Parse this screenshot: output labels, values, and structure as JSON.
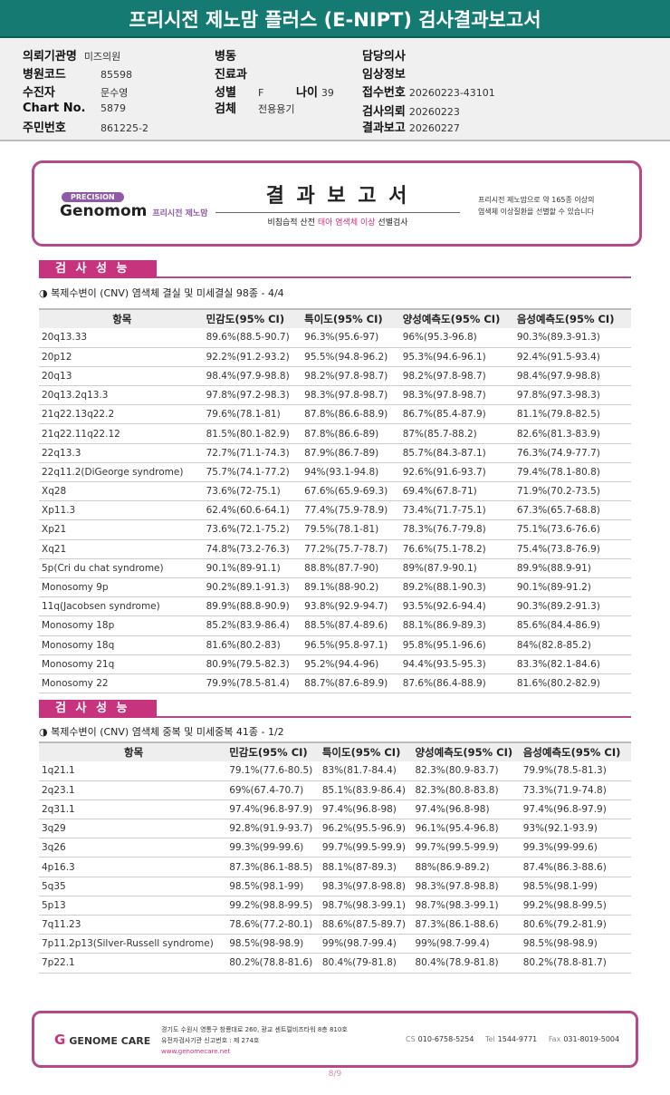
{
  "title": "프리시전 제노맘 플러스 (E-NIPT) 검사결과보고서",
  "info": {
    "institution": {
      "label": "의뢰기관명",
      "value": "미즈의원"
    },
    "hospital_code": {
      "label": "병원코드",
      "value": "85598"
    },
    "patient": {
      "label": "수진자",
      "value": "문수영"
    },
    "chart_no": {
      "label": "Chart No.",
      "value": "5879"
    },
    "resident_no": {
      "label": "주민번호",
      "value": "861225-2"
    },
    "ward": {
      "label": "병동",
      "value": ""
    },
    "department": {
      "label": "진료과",
      "value": ""
    },
    "sex": {
      "label": "성별",
      "value": "F"
    },
    "age": {
      "label": "나이",
      "value": "39"
    },
    "specimen": {
      "label": "검체",
      "value": "전용용기"
    },
    "doctor": {
      "label": "담당의사",
      "value": ""
    },
    "clinical": {
      "label": "임상정보",
      "value": ""
    },
    "receipt_no": {
      "label": "접수번호",
      "value": "20260223-43101"
    },
    "request_date": {
      "label": "검사의뢰",
      "value": "20260223"
    },
    "report_date": {
      "label": "결과보고",
      "value": "20260227"
    }
  },
  "banner": {
    "precision": "PRECISION",
    "brand": "Genomom",
    "brand_sub": "프리시전 제노맘",
    "title": "결 과 보 고 서",
    "subtitle_a": "비침습적 산전 ",
    "subtitle_b": "태아 염색체 이상",
    "subtitle_c": " 선별검사",
    "note_line1": "프리시전 제노맘으로 약 165종 이상의",
    "note_line2": "염색체 이상질환을 선별할 수 있습니다"
  },
  "headers": [
    "항목",
    "민감도(95% CI)",
    "특이도(95% CI)",
    "양성예측도(95% CI)",
    "음성예측도(95% CI)"
  ],
  "sections": [
    {
      "heading": "검 사 성 능",
      "subtitle": "◑ 복제수변이 (CNV) 염색체 결실 및 미세결실 98종 - 4/4",
      "rows": [
        [
          "20q13.33",
          "89.6%(88.5-90.7)",
          "96.3%(95.6-97)",
          "96%(95.3-96.8)",
          "90.3%(89.3-91.3)"
        ],
        [
          "20p12",
          "92.2%(91.2-93.2)",
          "95.5%(94.8-96.2)",
          "95.3%(94.6-96.1)",
          "92.4%(91.5-93.4)"
        ],
        [
          "20q13",
          "98.4%(97.9-98.8)",
          "98.2%(97.8-98.7)",
          "98.2%(97.8-98.7)",
          "98.4%(97.9-98.8)"
        ],
        [
          "20q13.2q13.3",
          "97.8%(97.2-98.3)",
          "98.3%(97.8-98.7)",
          "98.3%(97.8-98.7)",
          "97.8%(97.3-98.3)"
        ],
        [
          "21q22.13q22.2",
          "79.6%(78.1-81)",
          "87.8%(86.6-88.9)",
          "86.7%(85.4-87.9)",
          "81.1%(79.8-82.5)"
        ],
        [
          "21q22.11q22.12",
          "81.5%(80.1-82.9)",
          "87.8%(86.6-89)",
          "87%(85.7-88.2)",
          "82.6%(81.3-83.9)"
        ],
        [
          "22q13.3",
          "72.7%(71.1-74.3)",
          "87.9%(86.7-89)",
          "85.7%(84.3-87.1)",
          "76.3%(74.9-77.7)"
        ],
        [
          "22q11.2(DiGeorge syndrome)",
          "75.7%(74.1-77.2)",
          "94%(93.1-94.8)",
          "92.6%(91.6-93.7)",
          "79.4%(78.1-80.8)"
        ],
        [
          "Xq28",
          "73.6%(72-75.1)",
          "67.6%(65.9-69.3)",
          "69.4%(67.8-71)",
          "71.9%(70.2-73.5)"
        ],
        [
          "Xp11.3",
          "62.4%(60.6-64.1)",
          "77.4%(75.9-78.9)",
          "73.4%(71.7-75.1)",
          "67.3%(65.7-68.8)"
        ],
        [
          "Xp21",
          "73.6%(72.1-75.2)",
          "79.5%(78.1-81)",
          "78.3%(76.7-79.8)",
          "75.1%(73.6-76.6)"
        ],
        [
          "Xq21",
          "74.8%(73.2-76.3)",
          "77.2%(75.7-78.7)",
          "76.6%(75.1-78.2)",
          "75.4%(73.8-76.9)"
        ],
        [
          "5p(Cri du chat syndrome)",
          "90.1%(89-91.1)",
          "88.8%(87.7-90)",
          "89%(87.9-90.1)",
          "89.9%(88.9-91)"
        ],
        [
          "Monosomy 9p",
          "90.2%(89.1-91.3)",
          "89.1%(88-90.2)",
          "89.2%(88.1-90.3)",
          "90.1%(89-91.2)"
        ],
        [
          "11q(Jacobsen syndrome)",
          "89.9%(88.8-90.9)",
          "93.8%(92.9-94.7)",
          "93.5%(92.6-94.4)",
          "90.3%(89.2-91.3)"
        ],
        [
          "Monosomy 18p",
          "85.2%(83.9-86.4)",
          "88.5%(87.4-89.6)",
          "88.1%(86.9-89.3)",
          "85.6%(84.4-86.9)"
        ],
        [
          "Monosomy 18q",
          "81.6%(80.2-83)",
          "96.5%(95.8-97.1)",
          "95.8%(95.1-96.6)",
          "84%(82.8-85.2)"
        ],
        [
          "Monosomy 21q",
          "80.9%(79.5-82.3)",
          "95.2%(94.4-96)",
          "94.4%(93.5-95.3)",
          "83.3%(82.1-84.6)"
        ],
        [
          "Monosomy 22",
          "79.9%(78.5-81.4)",
          "88.7%(87.6-89.9)",
          "87.6%(86.4-88.9)",
          "81.6%(80.2-82.9)"
        ]
      ]
    },
    {
      "heading": "검 사 성 능",
      "subtitle": "◑ 복제수변이 (CNV) 염색체 중복 및 미세중복 41종 - 1/2",
      "rows": [
        [
          "1q21.1",
          "79.1%(77.6-80.5)",
          "83%(81.7-84.4)",
          "82.3%(80.9-83.7)",
          "79.9%(78.5-81.3)"
        ],
        [
          "2q23.1",
          "69%(67.4-70.7)",
          "85.1%(83.9-86.4)",
          "82.3%(80.8-83.8)",
          "73.3%(71.9-74.8)"
        ],
        [
          "2q31.1",
          "97.4%(96.8-97.9)",
          "97.4%(96.8-98)",
          "97.4%(96.8-98)",
          "97.4%(96.8-97.9)"
        ],
        [
          "3q29",
          "92.8%(91.9-93.7)",
          "96.2%(95.5-96.9)",
          "96.1%(95.4-96.8)",
          "93%(92.1-93.9)"
        ],
        [
          "3q26",
          "99.3%(99-99.6)",
          "99.7%(99.5-99.9)",
          "99.7%(99.5-99.9)",
          "99.3%(99-99.6)"
        ],
        [
          "4p16.3",
          "87.3%(86.1-88.5)",
          "88.1%(87-89.3)",
          "88%(86.9-89.2)",
          "87.4%(86.3-88.6)"
        ],
        [
          "5q35",
          "98.5%(98.1-99)",
          "98.3%(97.8-98.8)",
          "98.3%(97.8-98.8)",
          "98.5%(98.1-99)"
        ],
        [
          "5p13",
          "99.2%(98.8-99.5)",
          "98.7%(98.3-99.1)",
          "98.7%(98.3-99.1)",
          "99.2%(98.8-99.5)"
        ],
        [
          "7q11.23",
          "78.6%(77.2-80.1)",
          "88.6%(87.5-89.7)",
          "87.3%(86.1-88.6)",
          "80.6%(79.2-81.9)"
        ],
        [
          "7p11.2p13(Silver-Russell syndrome)",
          "98.5%(98-98.9)",
          "99%(98.7-99.4)",
          "99%(98.7-99.4)",
          "98.5%(98-98.9)"
        ],
        [
          "7p22.1",
          "80.2%(78.8-81.6)",
          "80.4%(79-81.8)",
          "80.4%(78.9-81.8)",
          "80.2%(78.8-81.7)"
        ]
      ]
    }
  ],
  "footer": {
    "logo": "GENOME CARE",
    "address": "경기도 수원시 영통구 창룡대로 260, 광교 센트럴비즈타워 8층 810호",
    "license": "유전자검사기관 신고번호 : 제 274호",
    "website": "www.genomecare.net",
    "cs_label": "CS",
    "cs": "010-6758-5254",
    "tel_label": "Tel",
    "tel": "1544-9771",
    "fax_label": "Fax",
    "fax": "031-8019-5004"
  },
  "page": "8/9",
  "colors": {
    "title_bar": "#147a72",
    "accent": "#c8337e",
    "border": "#b5498a"
  }
}
